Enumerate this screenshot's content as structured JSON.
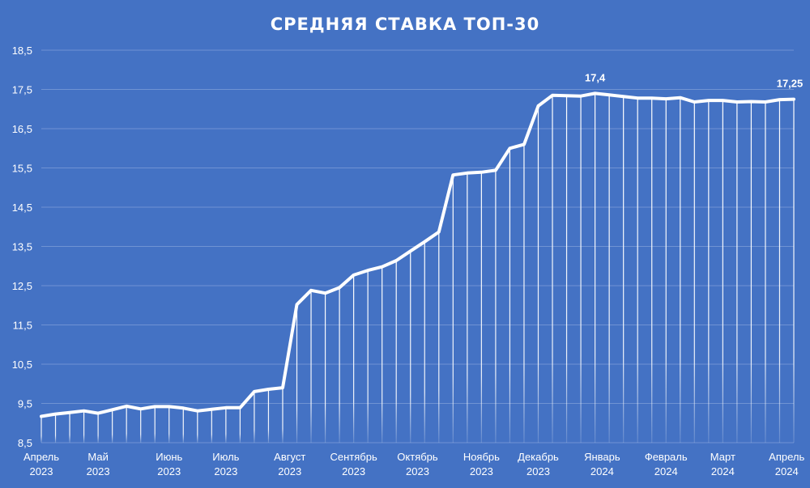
{
  "chart_data": {
    "type": "line",
    "title": "СРЕДНЯЯ СТАВКА ТОП-30",
    "xlabel": "",
    "ylabel": "",
    "ylim": [
      8.5,
      18.5
    ],
    "yticks": [
      "8,5",
      "9,5",
      "10,5",
      "11,5",
      "12,5",
      "13,5",
      "14,5",
      "15,5",
      "16,5",
      "17,5",
      "18,5"
    ],
    "ytick_values": [
      8.5,
      9.5,
      10.5,
      11.5,
      12.5,
      13.5,
      14.5,
      15.5,
      16.5,
      17.5,
      18.5
    ],
    "grid": true,
    "drop_lines": true,
    "colors": {
      "background": "#4472C4",
      "line": "#FFFFFF",
      "grid": "#6F93D3"
    },
    "values": [
      9.17,
      9.23,
      9.27,
      9.31,
      9.25,
      9.34,
      9.43,
      9.36,
      9.42,
      9.42,
      9.38,
      9.31,
      9.35,
      9.39,
      9.39,
      9.8,
      9.86,
      9.9,
      12.02,
      12.38,
      12.31,
      12.45,
      12.77,
      12.89,
      12.98,
      13.14,
      13.38,
      13.62,
      13.87,
      15.32,
      15.37,
      15.39,
      15.44,
      16.0,
      16.1,
      17.08,
      17.35,
      17.34,
      17.33,
      17.4,
      17.36,
      17.32,
      17.28,
      17.28,
      17.26,
      17.29,
      17.18,
      17.22,
      17.22,
      17.18,
      17.19,
      17.18,
      17.24,
      17.25
    ],
    "x_ticks": [
      {
        "index": 0,
        "month": "Апрель",
        "year": "2023"
      },
      {
        "index": 4,
        "month": "Май",
        "year": "2023"
      },
      {
        "index": 9,
        "month": "Июнь",
        "year": "2023"
      },
      {
        "index": 13,
        "month": "Июль",
        "year": "2023"
      },
      {
        "index": 17.5,
        "month": "Август",
        "year": "2023"
      },
      {
        "index": 22,
        "month": "Сентябрь",
        "year": "2023"
      },
      {
        "index": 26.5,
        "month": "Октябрь",
        "year": "2023"
      },
      {
        "index": 31,
        "month": "Ноябрь",
        "year": "2023"
      },
      {
        "index": 35,
        "month": "Декабрь",
        "year": "2023"
      },
      {
        "index": 39.5,
        "month": "Январь",
        "year": "2024"
      },
      {
        "index": 44,
        "month": "Февраль",
        "year": "2024"
      },
      {
        "index": 48,
        "month": "Март",
        "year": "2024"
      },
      {
        "index": 52.5,
        "month": "Апрель",
        "year": "2024"
      }
    ],
    "data_labels": [
      {
        "index": 39,
        "text": "17,4"
      },
      {
        "index": 53,
        "text": "17,25"
      }
    ]
  }
}
